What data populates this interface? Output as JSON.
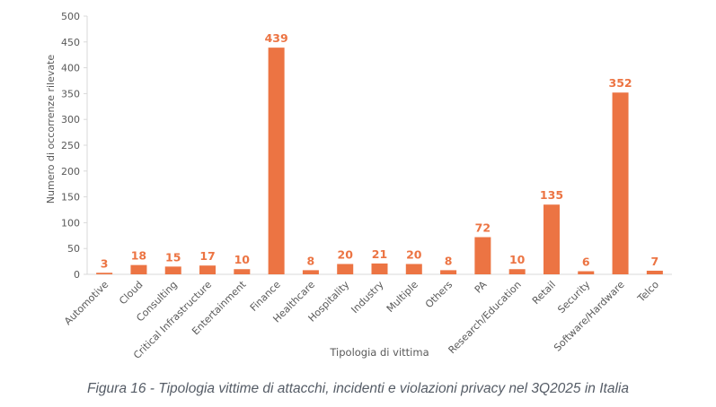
{
  "chart_data": {
    "type": "bar",
    "title": "",
    "xlabel": "Tipologia di vittima",
    "ylabel": "Numero di occorrenze rilevate",
    "ylim": [
      0,
      500
    ],
    "yticks": [
      0,
      50,
      100,
      150,
      200,
      250,
      300,
      350,
      400,
      450,
      500
    ],
    "grid": false,
    "legend": "none",
    "bar_color": "#ec7443",
    "categories": [
      "Automotive",
      "Cloud",
      "Consulting",
      "Critical Infrastructure",
      "Entertainment",
      "Finance",
      "Healthcare",
      "Hospitality",
      "Industry",
      "Multiple",
      "Others",
      "PA",
      "Research/Education",
      "Retail",
      "Security",
      "Software/Hardware",
      "Telco"
    ],
    "values": [
      3,
      18,
      15,
      17,
      10,
      439,
      8,
      20,
      21,
      20,
      8,
      72,
      10,
      135,
      6,
      352,
      7
    ]
  },
  "caption": "Figura 16 - Tipologia vittime di attacchi, incidenti e violazioni privacy nel 3Q2025 in Italia"
}
